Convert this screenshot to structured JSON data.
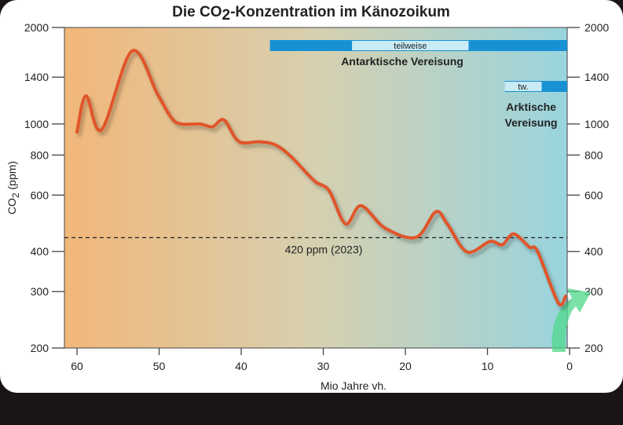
{
  "chart_data": {
    "type": "line",
    "title": "Die CO2-Konzentration im Känozoikum",
    "title_parts": {
      "before": "Die CO",
      "sub": "2",
      "after": "-Konzentration im Känozoikum"
    },
    "xlabel": "Mio Jahre vh.",
    "ylabel": "CO2 (ppm)",
    "ylabel_parts": {
      "before": "CO",
      "sub": "2",
      "after": " (ppm)"
    },
    "xlim": [
      61.5,
      0
    ],
    "ylim": [
      200,
      2000
    ],
    "yscale": "log",
    "x_ticks": [
      60,
      50,
      40,
      30,
      20,
      10,
      0
    ],
    "y_ticks": [
      2000,
      1400,
      1000,
      800,
      600,
      400,
      300,
      200
    ],
    "series": [
      {
        "name": "CO2",
        "color": "#e0542a",
        "x": [
          60,
          58.9,
          57,
          53.3,
          50.2,
          48.5,
          47.3,
          45,
          43.5,
          42.1,
          40.3,
          37.7,
          35.8,
          33.9,
          31.1,
          29.3,
          27.3,
          25.4,
          22.5,
          18.7,
          16.3,
          14.9,
          12.5,
          9.7,
          8.2,
          6.8,
          4.9,
          3.9,
          1.4,
          0.5
        ],
        "y": [
          944,
          1224,
          960,
          1689,
          1240,
          1045,
          1000,
          1000,
          980,
          1030,
          883,
          880,
          860,
          790,
          665,
          620,
          488,
          556,
          474,
          443,
          532,
          488,
          399,
          430,
          420,
          454,
          413,
          400,
          277,
          290
        ]
      }
    ],
    "reference_line": {
      "value": 420,
      "label": "420 ppm (2023)"
    },
    "annotations": [
      {
        "name": "Antarktische Vereisung",
        "label": "Antarktische Vereisung",
        "from": 36.5,
        "to": 0,
        "partial_from": 26.5,
        "partial_to": 12.3,
        "partial_label": "teilweise"
      },
      {
        "name": "Arktische Vereisung",
        "label_lines": [
          "Arktische",
          "Vereisung"
        ],
        "from": 7.9,
        "to": 0,
        "partial_from": 7.9,
        "partial_to": 3.4,
        "partial_label": "tw."
      }
    ],
    "colors": {
      "bg_left": "#f2b77a",
      "bg_mid": "#d6d0b0",
      "bg_right": "#99d4de",
      "bar": "#1791d4",
      "bar_partial": "#c9ebf6",
      "arrow": "#4fd88a"
    },
    "grid": false
  }
}
